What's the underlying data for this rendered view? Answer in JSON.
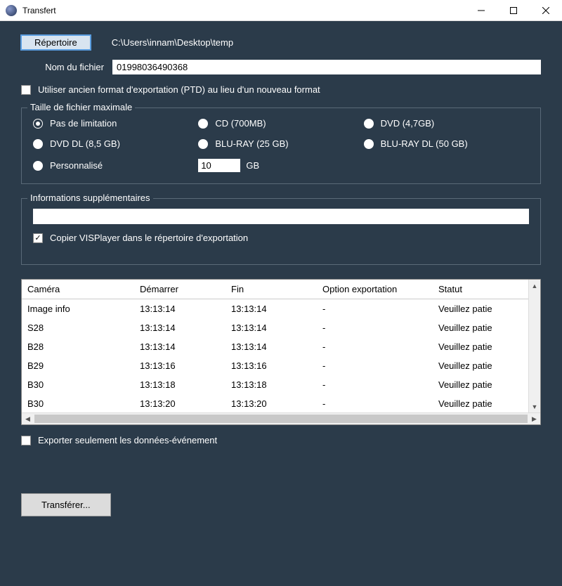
{
  "window": {
    "title": "Transfert"
  },
  "repertoire": {
    "button_label": "Répertoire",
    "path": "C:\\Users\\innam\\Desktop\\temp"
  },
  "filename": {
    "label": "Nom du fichier",
    "value": "01998036490368"
  },
  "legacy_format_checkbox": {
    "label": "Utiliser ancien format d'exportation (PTD) au lieu d'un nouveau format",
    "checked": false
  },
  "filesize": {
    "legend": "Taille de fichier maximale",
    "options": [
      {
        "label": "Pas de limitation",
        "selected": true
      },
      {
        "label": "CD (700MB)",
        "selected": false
      },
      {
        "label": "DVD (4,7GB)",
        "selected": false
      },
      {
        "label": "DVD DL (8,5 GB)",
        "selected": false
      },
      {
        "label": "BLU-RAY (25 GB)",
        "selected": false
      },
      {
        "label": "BLU-RAY DL (50 GB)",
        "selected": false
      },
      {
        "label": "Personnalisé",
        "selected": false
      }
    ],
    "custom_value": "10",
    "custom_unit": "GB"
  },
  "info": {
    "legend": "Informations supplémentaires",
    "text_value": "",
    "copy_player_label": "Copier VISPlayer dans le répertoire d'exportation",
    "copy_player_checked": true
  },
  "table": {
    "columns": [
      "Caméra",
      "Démarrer",
      "Fin",
      "Option exportation",
      "Statut"
    ],
    "rows": [
      [
        "Image info",
        "13:13:14",
        "13:13:14",
        "-",
        "Veuillez patie"
      ],
      [
        "S28",
        "13:13:14",
        "13:13:14",
        "-",
        "Veuillez patie"
      ],
      [
        "B28",
        "13:13:14",
        "13:13:14",
        "-",
        "Veuillez patie"
      ],
      [
        "B29",
        "13:13:16",
        "13:13:16",
        "-",
        "Veuillez patie"
      ],
      [
        "B30",
        "13:13:18",
        "13:13:18",
        "-",
        "Veuillez patie"
      ],
      [
        "B30",
        "13:13:20",
        "13:13:20",
        "-",
        "Veuillez patie"
      ]
    ]
  },
  "export_events_only": {
    "label": "Exporter seulement les données-événement",
    "checked": false
  },
  "transfer_button_label": "Transférer...",
  "colors": {
    "content_bg": "#2b3b4a",
    "accent_border": "#5a9de0",
    "button_bg": "#d8e4f0",
    "fieldset_border": "#5a6a78"
  }
}
